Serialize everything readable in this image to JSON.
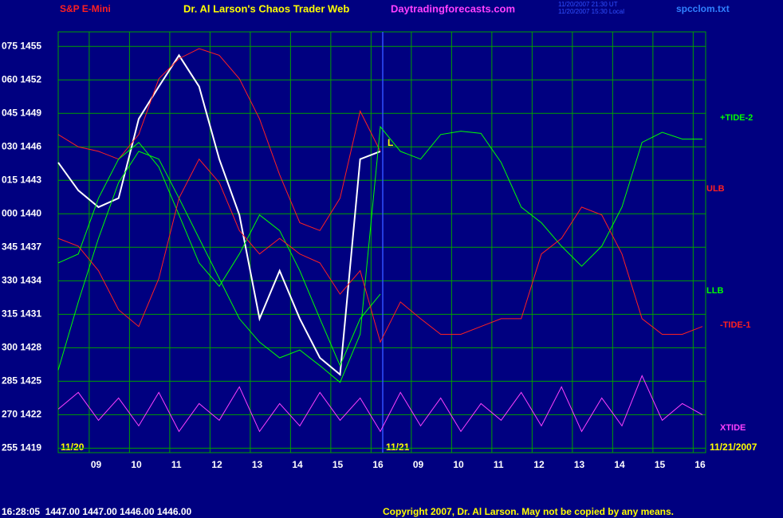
{
  "chart_data": {
    "type": "line",
    "title": "Dr. Al Larson's Chaos Trader Web",
    "subtitle": "S&P E-Mini",
    "website": "Daytradingforecasts.com",
    "timestamp_lines": [
      "11/20/2007 21:30 UT",
      "11/20/2007 15:30 Local"
    ],
    "file": "spcclom.txt",
    "date_labels": [
      "11/20",
      "11/21",
      "11/21/2007"
    ],
    "annotation": "L",
    "status_line": "16:28:05  1447.00 1447.00 1446.00 1446.00",
    "copyright": "Copyright 2007, Dr. Al Larson. May not be copied by any means.",
    "grid": true,
    "xlim": [
      0,
      16.08
    ],
    "ylim": [
      1418.6,
      1456.3
    ],
    "xticks": [
      {
        "value": 0.77,
        "label": "09"
      },
      {
        "value": 1.77,
        "label": "10"
      },
      {
        "value": 2.77,
        "label": "11"
      },
      {
        "value": 3.77,
        "label": "12"
      },
      {
        "value": 4.77,
        "label": "13"
      },
      {
        "value": 5.77,
        "label": "14"
      },
      {
        "value": 6.77,
        "label": "15"
      },
      {
        "value": 7.77,
        "label": "16"
      },
      {
        "value": 8.77,
        "label": "09"
      },
      {
        "value": 9.77,
        "label": "10"
      },
      {
        "value": 10.77,
        "label": "11"
      },
      {
        "value": 11.77,
        "label": "12"
      },
      {
        "value": 12.77,
        "label": "13"
      },
      {
        "value": 13.77,
        "label": "14"
      },
      {
        "value": 14.77,
        "label": "15"
      },
      {
        "value": 15.77,
        "label": "16"
      }
    ],
    "yticks": [
      {
        "value": 1455,
        "label": "075 1455"
      },
      {
        "value": 1452,
        "label": "060 1452"
      },
      {
        "value": 1449,
        "label": "045 1449"
      },
      {
        "value": 1446,
        "label": "030 1446"
      },
      {
        "value": 1443,
        "label": "015 1443"
      },
      {
        "value": 1440,
        "label": "000 1440"
      },
      {
        "value": 1437,
        "label": "345 1437"
      },
      {
        "value": 1434,
        "label": "330 1434"
      },
      {
        "value": 1431,
        "label": "315 1431"
      },
      {
        "value": 1428,
        "label": "300 1428"
      },
      {
        "value": 1425,
        "label": "285 1425"
      },
      {
        "value": 1422,
        "label": "270 1422"
      },
      {
        "value": 1419,
        "label": "255 1419"
      }
    ],
    "x": [
      0,
      0.5,
      1,
      1.5,
      2,
      2.5,
      3,
      3.5,
      4,
      4.5,
      5,
      5.5,
      6,
      6.5,
      7,
      7.5,
      8,
      8.5,
      9,
      9.5,
      10,
      10.5,
      11,
      11.5,
      12,
      12.5,
      13,
      13.5,
      14,
      14.5,
      15,
      15.5,
      16
    ],
    "series": [
      {
        "color": "#ffffff",
        "values": [
          1444.6,
          1442.1,
          1440.6,
          1441.4,
          1448.5,
          1451.4,
          1454.2,
          1451.4,
          1444.9,
          1439.9,
          1430.6,
          1434.9,
          1430.6,
          1427.1,
          1425.6,
          1444.9,
          1445.6,
          null,
          null,
          null,
          null,
          null,
          null,
          null,
          null,
          null,
          null,
          null,
          null,
          null,
          null,
          null,
          null
        ]
      },
      {
        "name": "ULB",
        "color": "#ff2020",
        "values": [
          1447.1,
          1446.0,
          1445.6,
          1444.9,
          1447.1,
          1452.1,
          1453.9,
          1454.8,
          1454.2,
          1452.1,
          1448.5,
          1443.5,
          1439.2,
          1438.5,
          1441.4,
          1449.2,
          1445.6,
          null,
          null,
          null,
          null,
          null,
          null,
          null,
          null,
          null,
          null,
          null,
          null,
          null,
          null,
          null,
          null
        ]
      },
      {
        "name": "LLB",
        "color": "#00ff00",
        "values": [
          1435.6,
          1436.4,
          1441.4,
          1444.9,
          1446.4,
          1444.2,
          1439.9,
          1435.6,
          1433.5,
          1436.4,
          1439.9,
          1438.5,
          1434.9,
          1430.6,
          1426.4,
          1430.6,
          1432.8,
          null,
          null,
          null,
          null,
          null,
          null,
          null,
          null,
          null,
          null,
          null,
          null,
          null,
          null,
          null,
          null
        ]
      },
      {
        "name": "+TIDE-2",
        "color": "#00ff00",
        "values": [
          1426.0,
          1432.1,
          1437.8,
          1442.8,
          1445.6,
          1444.9,
          1441.4,
          1437.8,
          1434.2,
          1430.6,
          1428.5,
          1427.1,
          1427.8,
          1426.4,
          1424.9,
          1429.2,
          1447.8,
          1445.6,
          1444.9,
          1447.1,
          1447.4,
          1447.2,
          1444.6,
          1440.6,
          1439.2,
          1437.1,
          1435.3,
          1437.1,
          1440.6,
          1446.4,
          1447.3,
          1446.7,
          1446.7
        ]
      },
      {
        "name": "-TIDE-1",
        "color": "#ff2020",
        "values": [
          1437.8,
          1437.1,
          1434.9,
          1431.4,
          1429.9,
          1434.2,
          1441.4,
          1444.9,
          1442.8,
          1438.5,
          1436.4,
          1437.8,
          1436.4,
          1435.6,
          1432.8,
          1434.9,
          1428.5,
          1432.1,
          1430.6,
          1429.2,
          1429.2,
          1429.9,
          1430.6,
          1430.6,
          1436.4,
          1437.8,
          1440.6,
          1439.9,
          1436.4,
          1430.6,
          1429.2,
          1429.2,
          1429.9
        ]
      },
      {
        "name": "XTIDE",
        "color": "#ff40ff",
        "values": [
          1422.5,
          1424,
          1421.5,
          1423.5,
          1421,
          1424,
          1420.5,
          1423,
          1421.5,
          1424.5,
          1420.5,
          1423,
          1421,
          1424,
          1421.5,
          1423.5,
          1420.5,
          1424,
          1421,
          1423.5,
          1420.5,
          1423,
          1421.5,
          1424,
          1421,
          1424.5,
          1420.5,
          1423.5,
          1421,
          1425.5,
          1421.5,
          1423,
          1422
        ]
      }
    ]
  }
}
